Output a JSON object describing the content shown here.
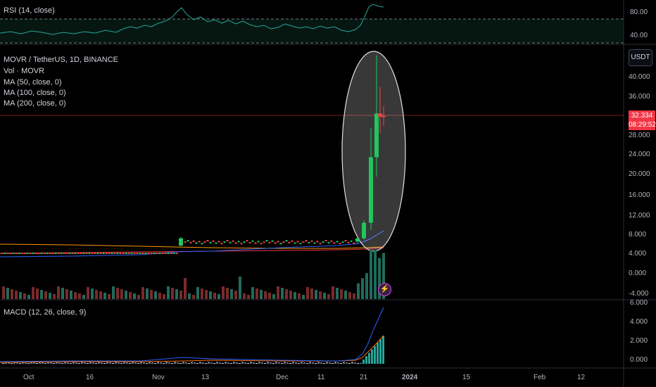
{
  "legend": {
    "symbol": "MOVR / TetherUS, 1D, BINANCE",
    "volume": "Vol · MOVR",
    "ma50": "MA (50, close, 0)",
    "ma100": "MA (100, close, 0)",
    "ma200": "MA (200, close, 0)"
  },
  "rsi": {
    "label": "RSI (14, close)",
    "ticks": [
      "80.00",
      "40.00"
    ]
  },
  "macd": {
    "label": "MACD (12, 26, close, 9)",
    "ticks": [
      "6.000",
      "4.000",
      "2.000",
      "0.000"
    ]
  },
  "price_axis": {
    "unit": "USDT",
    "ticks": [
      "40.000",
      "36.000",
      "32.000",
      "28.000",
      "24.000",
      "20.000",
      "16.000",
      "12.000",
      "8.000",
      "4.000",
      "0.000",
      "-4.000"
    ],
    "last_price": "32.334",
    "countdown": "08:29:52"
  },
  "time_axis": [
    "Oct",
    "16",
    "Nov",
    "13",
    "Dec",
    "11",
    "21",
    "2024",
    "15",
    "Feb",
    "12"
  ],
  "colors": {
    "up": "#22c55e",
    "down": "#ef4444",
    "rsi": "#26a69a",
    "ma": "#2962ff",
    "ma2": "#f23645",
    "ma3": "#ff9800",
    "macd": "#2962ff",
    "signal": "#ff6d00"
  },
  "icons": {
    "alert": "flash-alert-icon"
  },
  "chart_data": {
    "type": "candlestick",
    "period": "1D",
    "ylim": [
      -4,
      42
    ],
    "candles": [
      {
        "date": "2023-11-07",
        "open": 5.8,
        "close": 7.3,
        "low": 5.6,
        "high": 7.6
      },
      {
        "date": "2023-12-19",
        "open": 6.6,
        "close": 7.3,
        "low": 6.2,
        "high": 7.5
      },
      {
        "date": "2023-12-20",
        "open": 7.3,
        "close": 10.5,
        "low": 7.0,
        "high": 11.0
      },
      {
        "date": "2023-12-21",
        "open": 10.5,
        "close": 24.0,
        "low": 9.0,
        "high": 30.0
      },
      {
        "date": "2023-12-22",
        "open": 24.0,
        "close": 33.0,
        "low": 20.0,
        "high": 45.0
      },
      {
        "date": "2023-12-23",
        "open": 33.0,
        "close": 32.334,
        "low": 29.0,
        "high": 38.5
      },
      {
        "date": "2023-12-24",
        "open": 32.5,
        "close": 32.334,
        "low": 30.5,
        "high": 34.5
      }
    ],
    "last_price": 32.334,
    "rsi_ylim": [
      30,
      100
    ],
    "macd_ylim": [
      0,
      6
    ]
  }
}
